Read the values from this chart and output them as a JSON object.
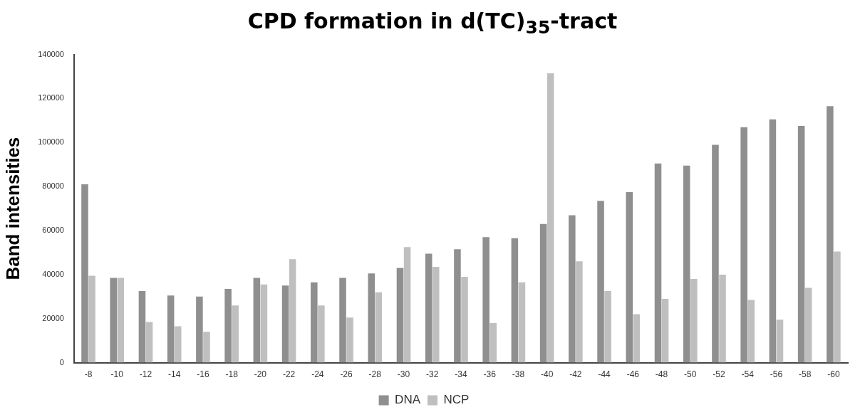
{
  "chart_data": {
    "type": "bar",
    "title": "CPD formation in d(TC)$_{35}$-tract",
    "ylabel": "Band intensities",
    "categories": [
      "-8",
      "-10",
      "-12",
      "-14",
      "-16",
      "-18",
      "-20",
      "-22",
      "-24",
      "-26",
      "-28",
      "-30",
      "-32",
      "-34",
      "-36",
      "-38",
      "-40",
      "-42",
      "-44",
      "-46",
      "-48",
      "-50",
      "-52",
      "-54",
      "-56",
      "-58",
      "-60"
    ],
    "series": [
      {
        "name": "DNA",
        "color": "#8f8f8f",
        "values": [
          81000,
          38500,
          32500,
          30500,
          30000,
          33500,
          38500,
          35000,
          36500,
          38500,
          40500,
          43000,
          49500,
          51500,
          57000,
          56500,
          63000,
          67000,
          73500,
          77500,
          90500,
          89500,
          99000,
          107000,
          110500,
          107500,
          116500
        ]
      },
      {
        "name": "NCP",
        "color": "#bfbfbf",
        "values": [
          39500,
          38500,
          18500,
          16500,
          14000,
          26000,
          35500,
          47000,
          26000,
          20500,
          32000,
          52500,
          43500,
          39000,
          18000,
          36500,
          131500,
          46000,
          32500,
          22000,
          29000,
          38000,
          40000,
          28500,
          19500,
          34000,
          50500
        ]
      }
    ],
    "ylim": [
      0,
      140000
    ],
    "yticks": [
      0,
      20000,
      40000,
      60000,
      80000,
      100000,
      120000,
      140000
    ],
    "grid": false,
    "legend": "bottom"
  }
}
